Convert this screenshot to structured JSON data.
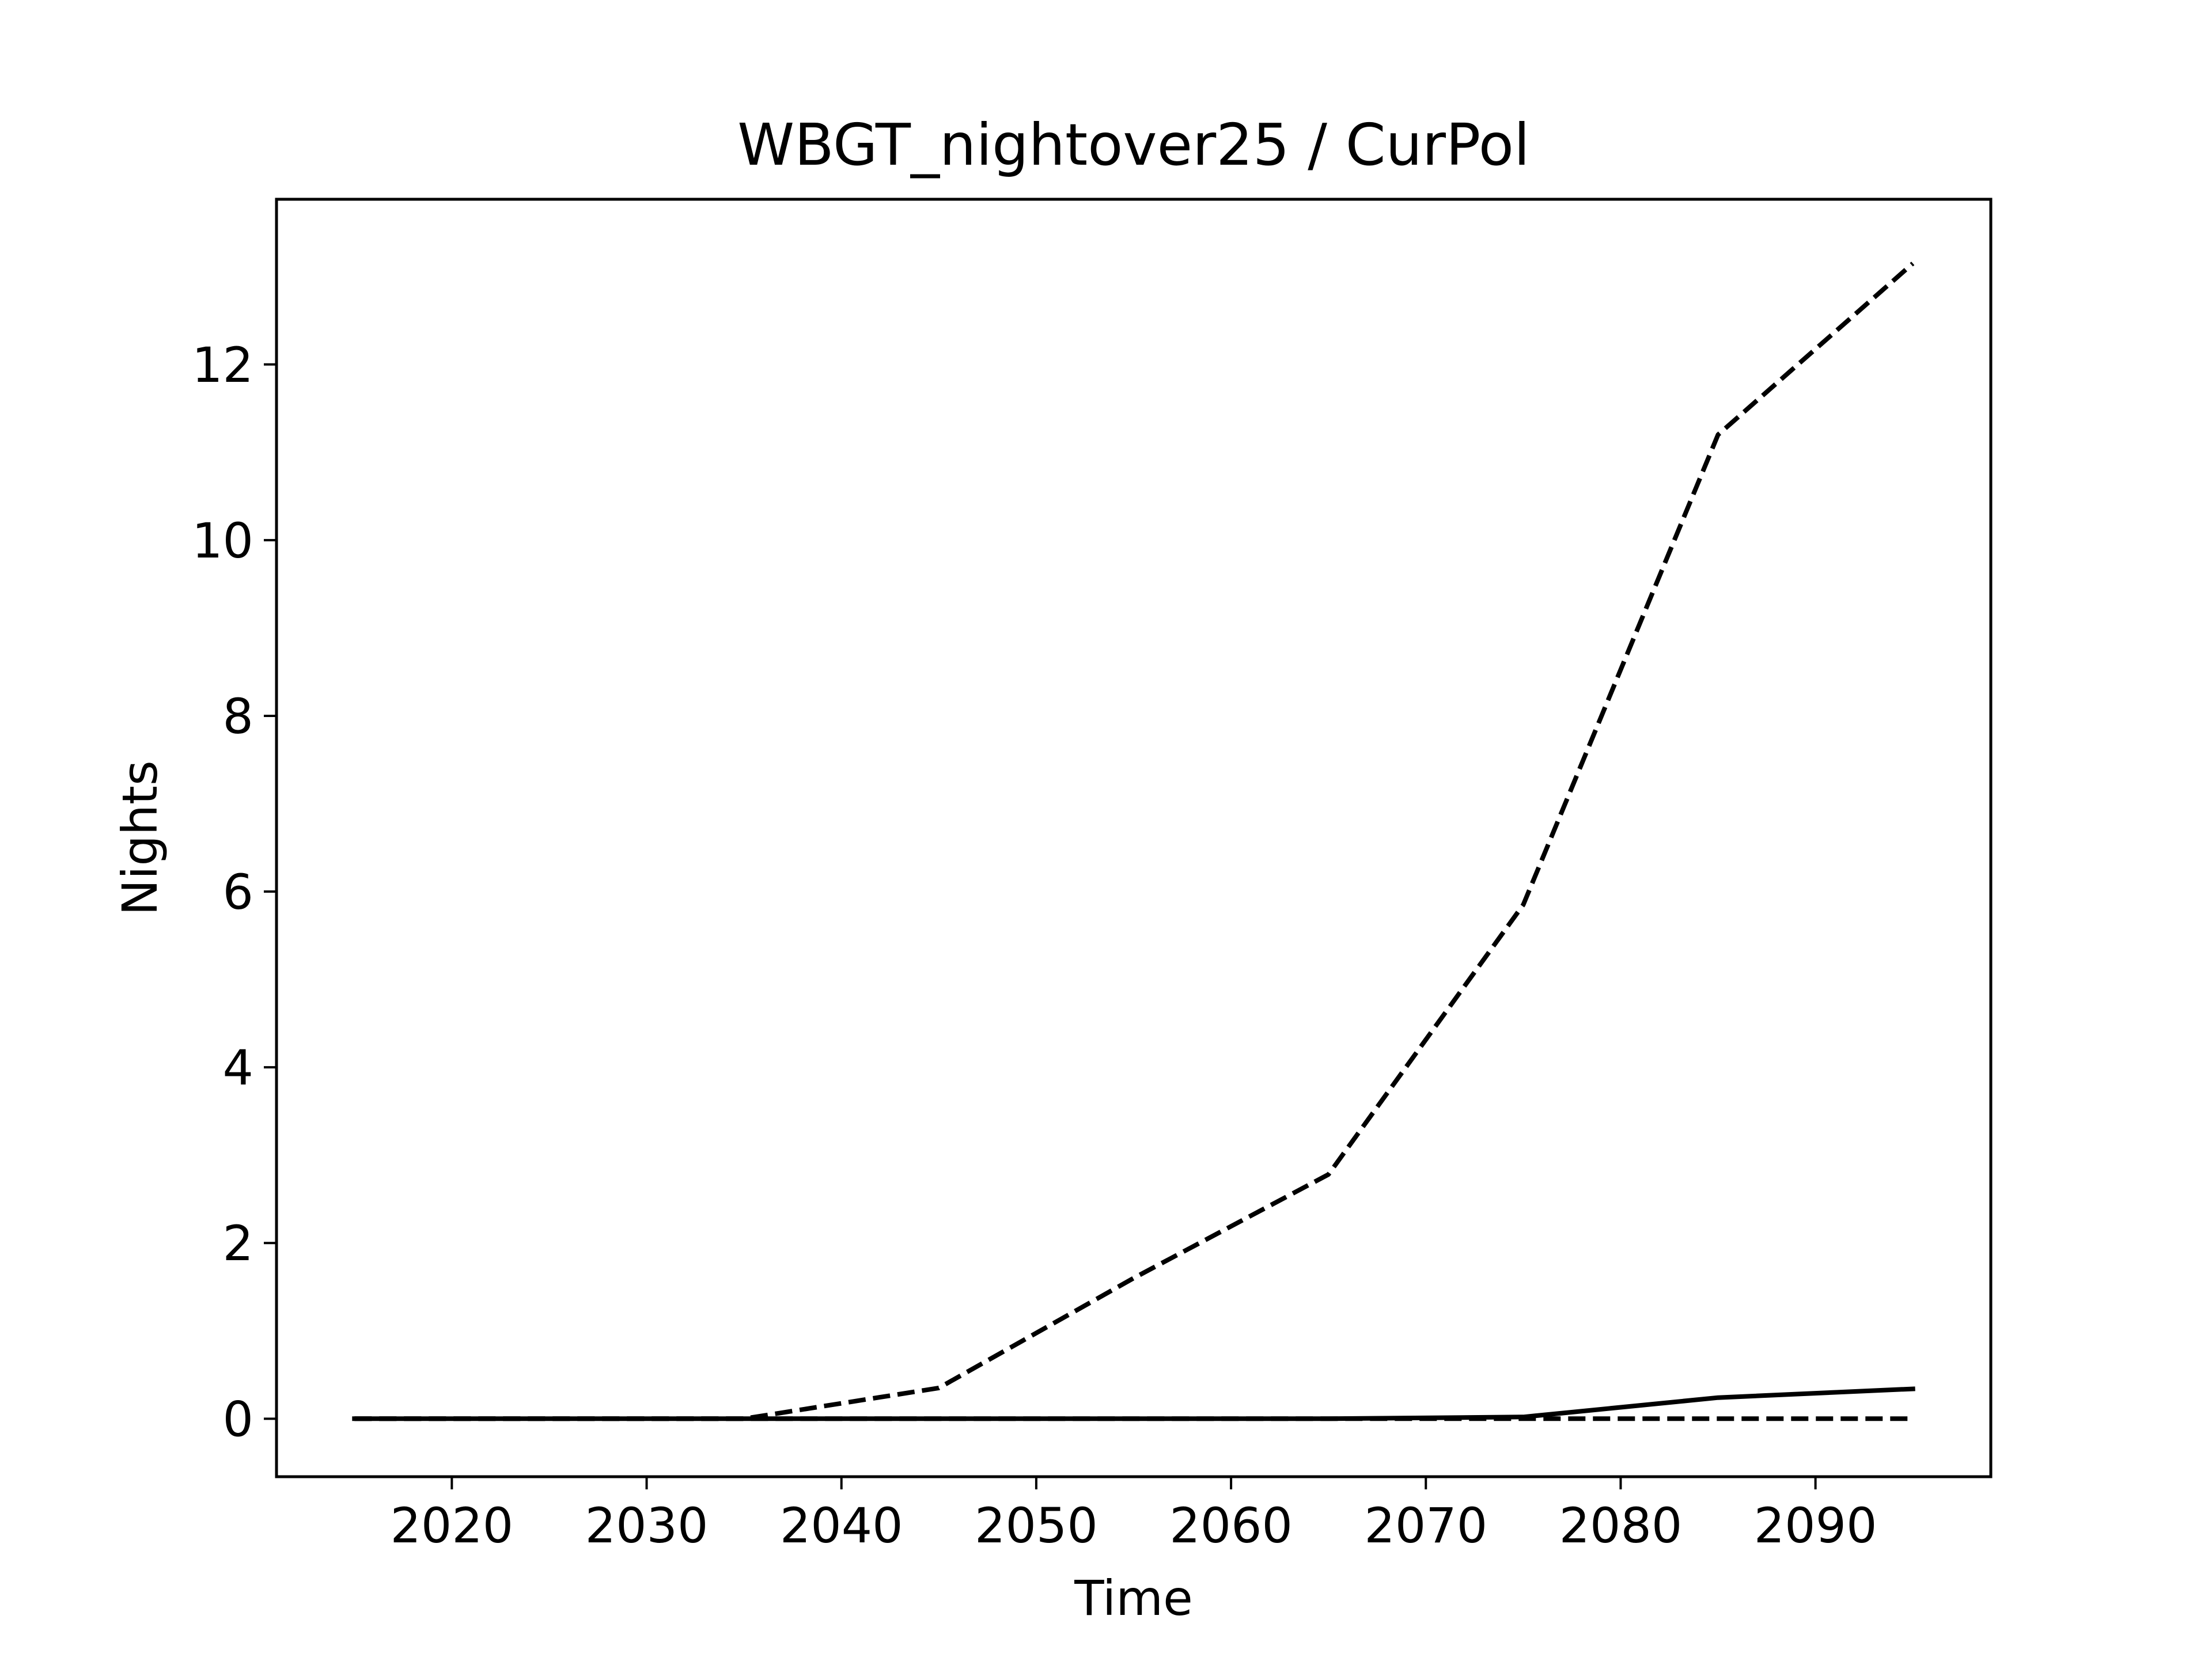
{
  "chart_data": {
    "type": "line",
    "title": "WBGT_nightover25 / CurPol",
    "xlabel": "Time",
    "ylabel": "Nights",
    "xlim": [
      2011,
      2099
    ],
    "ylim": [
      -0.66,
      13.88
    ],
    "xticks": [
      2020,
      2030,
      2040,
      2050,
      2060,
      2070,
      2080,
      2090
    ],
    "yticks": [
      0,
      2,
      4,
      6,
      8,
      10,
      12
    ],
    "grid": false,
    "legend": "none",
    "x": [
      2015,
      2025,
      2035,
      2045,
      2055,
      2065,
      2075,
      2085,
      2095
    ],
    "series": [
      {
        "style": "dashed",
        "color": "#000000",
        "values": [
          0,
          0,
          0,
          0.35,
          1.6,
          2.78,
          5.85,
          11.2,
          13.15
        ]
      },
      {
        "style": "solid",
        "color": "#000000",
        "values": [
          0,
          0,
          0,
          0,
          0,
          0,
          0.02,
          0.24,
          0.34
        ]
      },
      {
        "style": "dashed",
        "color": "#000000",
        "values": [
          0,
          0,
          0,
          0,
          0,
          0,
          0,
          0,
          0
        ]
      }
    ]
  }
}
